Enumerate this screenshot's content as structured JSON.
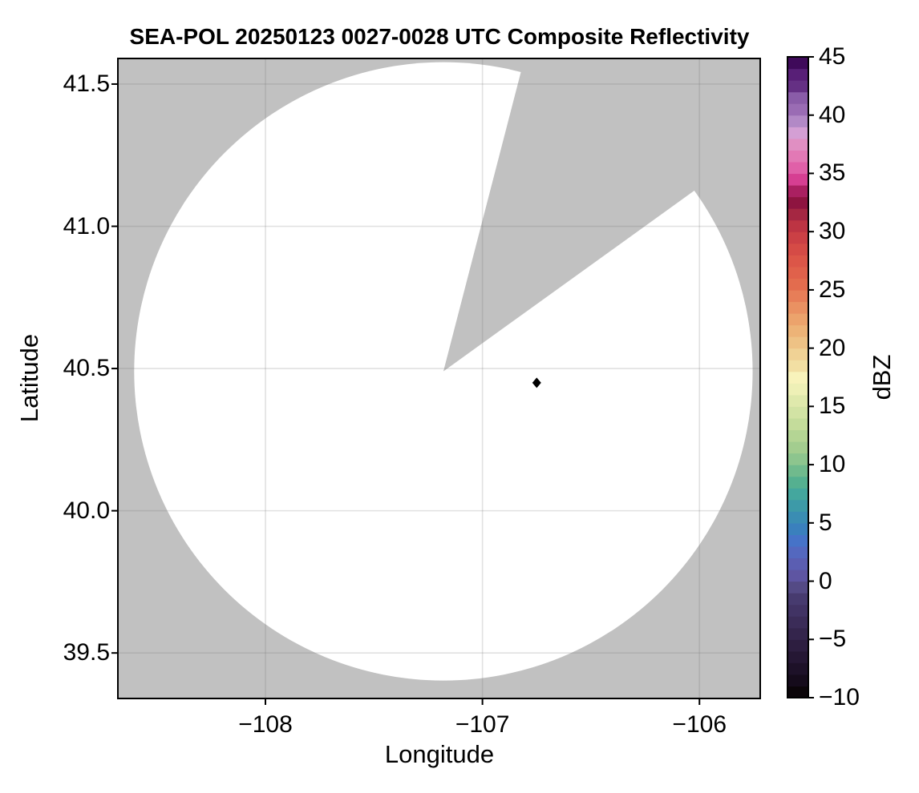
{
  "chart_data": {
    "type": "heatmap",
    "title": "SEA-POL 20250123 0027-0028 UTC Composite Reflectivity",
    "xlabel": "Longitude",
    "ylabel": "Latitude",
    "xlim": [
      -108.68,
      -105.72
    ],
    "ylim": [
      39.34,
      41.59
    ],
    "grid": true,
    "x_ticks": [
      {
        "value": -108,
        "label": "−108"
      },
      {
        "value": -107,
        "label": "−107"
      },
      {
        "value": -106,
        "label": "−106"
      }
    ],
    "y_ticks": [
      {
        "value": 39.5,
        "label": "39.5"
      },
      {
        "value": 40.0,
        "label": "40.0"
      },
      {
        "value": 40.5,
        "label": "40.5"
      },
      {
        "value": 41.0,
        "label": "41.0"
      },
      {
        "value": 41.5,
        "label": "41.5"
      }
    ],
    "colors": {
      "no_coverage_background": "#c1c1c1",
      "coverage_blank": "#ffffff",
      "spine": "#000000",
      "grid_line": "rgba(120,120,120,0.22)"
    },
    "radar": {
      "center": {
        "lon": -107.18,
        "lat": 40.49
      },
      "range_deg": {
        "lon": 1.425,
        "lat": 1.087
      },
      "blocked_sector_azimuth_deg": {
        "from": 14.5,
        "to": 54.2
      }
    },
    "echoes": [],
    "note": "No reflectivity echoes at or above -10 dBZ visible; coverage area is blank",
    "site_marker": {
      "lon": -106.75,
      "lat": 40.45,
      "shape": "diamond",
      "color": "#000000"
    },
    "colorbar": {
      "label": "dBZ",
      "vmin": -10,
      "vmax": 45,
      "band_dbz": 1,
      "ticks": [
        {
          "value": 45,
          "label": "45"
        },
        {
          "value": 40,
          "label": "40"
        },
        {
          "value": 35,
          "label": "35"
        },
        {
          "value": 30,
          "label": "30"
        },
        {
          "value": 25,
          "label": "25"
        },
        {
          "value": 20,
          "label": "20"
        },
        {
          "value": 15,
          "label": "15"
        },
        {
          "value": 10,
          "label": "10"
        },
        {
          "value": 5,
          "label": "5"
        },
        {
          "value": 0,
          "label": "0"
        },
        {
          "value": -5,
          "label": "−5"
        },
        {
          "value": -10,
          "label": "−10"
        }
      ],
      "colors_low_to_high": [
        "#0b0509",
        "#150b1b",
        "#1d1128",
        "#251734",
        "#2d1e40",
        "#34254c",
        "#3b2c58",
        "#413364",
        "#473b6f",
        "#544a85",
        "#5e55a2",
        "#5b5eb2",
        "#5468bf",
        "#4673c8",
        "#3a80bd",
        "#3a8db3",
        "#3d9aa8",
        "#44a79e",
        "#55b090",
        "#70ba8d",
        "#8dc58e",
        "#a3cd8f",
        "#b4d594",
        "#c4dc9b",
        "#d2e3a4",
        "#dfe9ac",
        "#eef0b6",
        "#f8f3bb",
        "#f2dfa3",
        "#f0d295",
        "#eec285",
        "#edb377",
        "#eca36c",
        "#ea9162",
        "#e77e58",
        "#e36c4e",
        "#e0614b",
        "#dc5648",
        "#d54b46",
        "#cb4045",
        "#bd3443",
        "#a52742",
        "#8e1440",
        "#aa2061",
        "#d63f92",
        "#e060a8",
        "#e279b5",
        "#e08fc2",
        "#d49fd4",
        "#b289c6",
        "#9a6cb4",
        "#8a5ca8",
        "#653084",
        "#581f77",
        "#3f0a5a"
      ]
    }
  }
}
